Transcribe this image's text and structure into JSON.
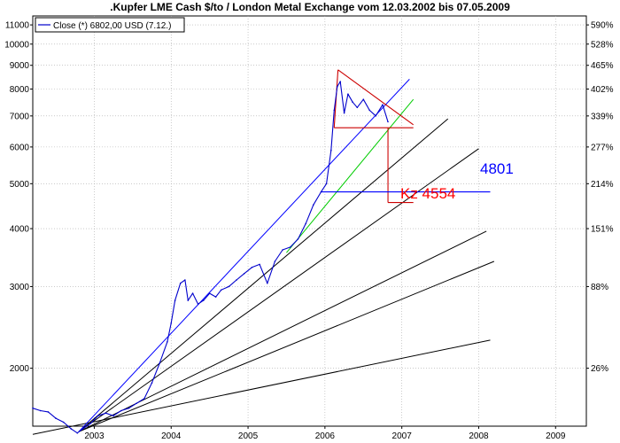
{
  "chart_data": {
    "type": "line",
    "title": ".Kupfer LME Cash $/to / London Metal Exchange vom 12.03.2002 bis 07.05.2009",
    "y_scale": "log",
    "ylim": [
      1500,
      11500
    ],
    "xlim": [
      2002.2,
      2009.4
    ],
    "y_ticks": [
      11000,
      10000,
      9000,
      8000,
      7000,
      6000,
      5000,
      4000,
      3000,
      2000
    ],
    "y_tick_labels": [
      "11000",
      "10000",
      "9000",
      "8000",
      "7000",
      "6000",
      "5000",
      "4000",
      "3000",
      "2000"
    ],
    "x_ticks": [
      2003,
      2004,
      2005,
      2006,
      2007,
      2008,
      2009
    ],
    "x_tick_labels": [
      "2003",
      "2004",
      "2005",
      "2006",
      "2007",
      "2008",
      "2009"
    ],
    "right_axis_labels": [
      "590%",
      "528%",
      "465%",
      "402%",
      "339%",
      "277%",
      "214%",
      "151%",
      "88%",
      "26%"
    ],
    "grid": true,
    "legend": {
      "position": "top-left",
      "entries": [
        "Close (*) 6802,00 USD (7.12.)"
      ]
    },
    "series": [
      {
        "name": "Close (*) 6802,00 USD (7.12.)",
        "color": "#0000cc",
        "x": [
          2002.2,
          2002.3,
          2002.4,
          2002.5,
          2002.6,
          2002.7,
          2002.78,
          2002.85,
          2002.95,
          2003.05,
          2003.15,
          2003.25,
          2003.35,
          2003.45,
          2003.55,
          2003.65,
          2003.75,
          2003.85,
          2003.95,
          2004.0,
          2004.05,
          2004.12,
          2004.18,
          2004.22,
          2004.28,
          2004.35,
          2004.42,
          2004.5,
          2004.58,
          2004.65,
          2004.75,
          2004.85,
          2004.95,
          2005.05,
          2005.15,
          2005.25,
          2005.35,
          2005.45,
          2005.55,
          2005.65,
          2005.75,
          2005.85,
          2005.95,
          2006.02,
          2006.08,
          2006.12,
          2006.16,
          2006.2,
          2006.25,
          2006.3,
          2006.36,
          2006.42,
          2006.5,
          2006.58,
          2006.66,
          2006.75,
          2006.82
        ],
        "values": [
          1640,
          1620,
          1610,
          1560,
          1530,
          1480,
          1450,
          1480,
          1520,
          1580,
          1600,
          1580,
          1620,
          1640,
          1680,
          1720,
          1860,
          2050,
          2280,
          2500,
          2800,
          3050,
          3100,
          2800,
          2900,
          2750,
          2800,
          2900,
          2850,
          2950,
          3000,
          3100,
          3200,
          3300,
          3350,
          3050,
          3400,
          3600,
          3650,
          3800,
          4100,
          4500,
          4800,
          5000,
          5900,
          7200,
          8100,
          8300,
          7100,
          7800,
          7500,
          7300,
          7600,
          7200,
          7000,
          7400,
          6802
        ]
      }
    ],
    "trend_lines": [
      {
        "color": "#000000",
        "start": [
          2002.2,
          1440
        ],
        "end": [
          2008.15,
          2300
        ]
      },
      {
        "color": "#000000",
        "start": [
          2002.8,
          1460
        ],
        "end": [
          2008.2,
          3400
        ]
      },
      {
        "color": "#000000",
        "start": [
          2002.8,
          1460
        ],
        "end": [
          2008.1,
          3950
        ]
      },
      {
        "color": "#000000",
        "start": [
          2002.8,
          1460
        ],
        "end": [
          2008.0,
          5950
        ]
      },
      {
        "color": "#000000",
        "start": [
          2002.8,
          1460
        ],
        "end": [
          2007.6,
          6900
        ]
      },
      {
        "color": "#0000ff",
        "start": [
          2002.8,
          1460
        ],
        "end": [
          2007.1,
          8400
        ]
      },
      {
        "color": "#00cc00",
        "start": [
          2005.5,
          3550
        ],
        "end": [
          2007.15,
          7600
        ]
      }
    ],
    "annotations": {
      "support_label": "4801",
      "target_label": "Kz 4554"
    }
  }
}
